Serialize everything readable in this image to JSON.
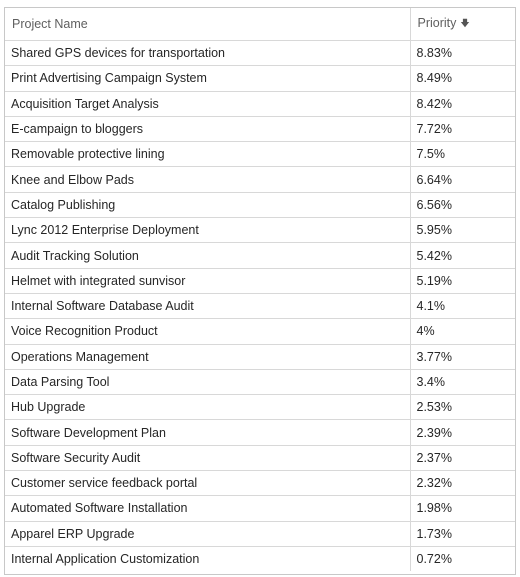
{
  "table": {
    "columns": {
      "name": "Project Name",
      "priority": "Priority",
      "sort_icon": "arrow-down-icon"
    },
    "rows": [
      {
        "name": "Shared GPS devices for transportation",
        "priority": "8.83%"
      },
      {
        "name": "Print Advertising Campaign System",
        "priority": "8.49%"
      },
      {
        "name": "Acquisition Target Analysis",
        "priority": "8.42%"
      },
      {
        "name": "E-campaign to bloggers",
        "priority": "7.72%"
      },
      {
        "name": "Removable protective lining",
        "priority": "7.5%"
      },
      {
        "name": "Knee and Elbow Pads",
        "priority": "6.64%"
      },
      {
        "name": "Catalog Publishing",
        "priority": "6.56%"
      },
      {
        "name": "Lync 2012 Enterprise Deployment",
        "priority": "5.95%"
      },
      {
        "name": "Audit Tracking Solution",
        "priority": "5.42%"
      },
      {
        "name": "Helmet with integrated sunvisor",
        "priority": "5.19%"
      },
      {
        "name": "Internal Software Database Audit",
        "priority": "4.1%"
      },
      {
        "name": "Voice Recognition Product",
        "priority": "4%"
      },
      {
        "name": "Operations Management",
        "priority": "3.77%"
      },
      {
        "name": "Data Parsing Tool",
        "priority": "3.4%"
      },
      {
        "name": "Hub Upgrade",
        "priority": "2.53%"
      },
      {
        "name": "Software Development Plan",
        "priority": "2.39%"
      },
      {
        "name": "Software Security Audit",
        "priority": "2.37%"
      },
      {
        "name": "Customer service feedback portal",
        "priority": "2.32%"
      },
      {
        "name": "Automated Software Installation",
        "priority": "1.98%"
      },
      {
        "name": "Apparel ERP Upgrade",
        "priority": "1.73%"
      },
      {
        "name": "Internal Application Customization",
        "priority": "0.72%"
      }
    ]
  }
}
